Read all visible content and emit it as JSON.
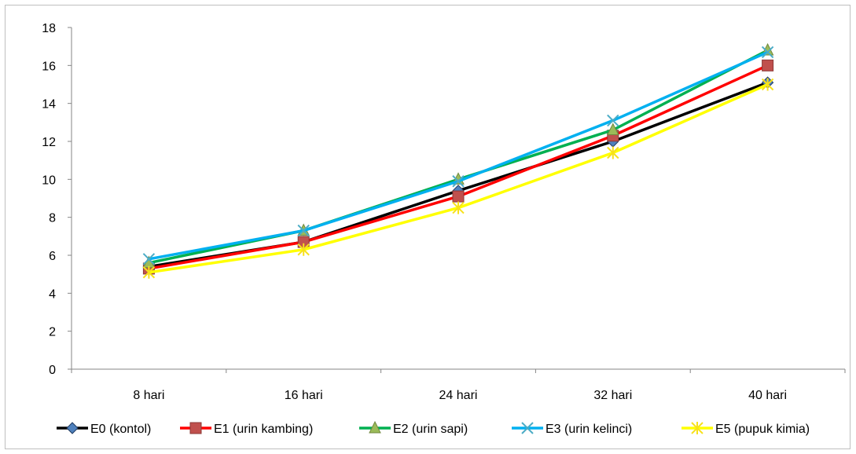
{
  "chart_data": {
    "type": "line",
    "title": "",
    "xlabel": "",
    "ylabel": "",
    "categories": [
      "8 hari",
      "16 hari",
      "24 hari",
      "32 hari",
      "40 hari"
    ],
    "ylim": [
      0,
      18
    ],
    "yticks": [
      0,
      2,
      4,
      6,
      8,
      10,
      12,
      14,
      16,
      18
    ],
    "grid": false,
    "legend_position": "bottom",
    "series": [
      {
        "name": "E0 (kontol)",
        "values": [
          5.4,
          6.7,
          9.4,
          12.0,
          15.1
        ],
        "color": "#000000",
        "marker": "diamond",
        "marker_color": "#4f81bd"
      },
      {
        "name": "E1 (urin kambing)",
        "values": [
          5.3,
          6.7,
          9.1,
          12.3,
          16.0
        ],
        "color": "#ff0000",
        "marker": "square",
        "marker_color": "#c0504d"
      },
      {
        "name": "E2 (urin sapi)",
        "values": [
          5.6,
          7.3,
          10.0,
          12.6,
          16.8
        ],
        "color": "#00b050",
        "marker": "triangle",
        "marker_color": "#9bbb59"
      },
      {
        "name": "E3 (urin kelinci)",
        "values": [
          5.8,
          7.3,
          9.9,
          13.1,
          16.7
        ],
        "color": "#00b0f0",
        "marker": "x",
        "marker_color": "#4bacc6"
      },
      {
        "name": "E5 (pupuk kimia)",
        "values": [
          5.1,
          6.3,
          8.5,
          11.4,
          15.0
        ],
        "color": "#ffff00",
        "marker": "star",
        "marker_color": "#f7e11b"
      }
    ]
  }
}
